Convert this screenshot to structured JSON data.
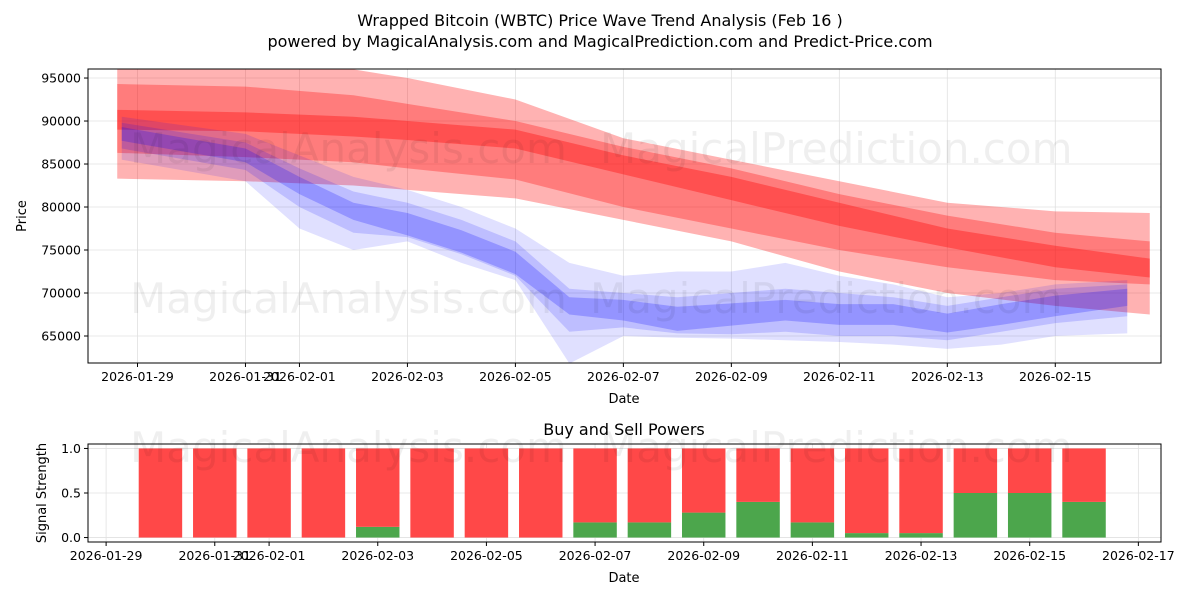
{
  "chart_data": [
    {
      "type": "area",
      "title": "Wrapped Bitcoin (WBTC) Price Wave Trend Analysis (Feb 16 )",
      "subtitle": "powered by MagicalAnalysis.com and MagicalPrediction.com and Predict-Price.com",
      "xlabel": "Date",
      "ylabel": "Price",
      "xlim": [
        "2026-01-28T02:00",
        "2026-02-16T23:00"
      ],
      "ylim": [
        61860,
        96050
      ],
      "grid": true,
      "x_ticks": [
        "2026-01-29",
        "2026-01-31",
        "2026-02-01",
        "2026-02-03",
        "2026-02-05",
        "2026-02-07",
        "2026-02-09",
        "2026-02-11",
        "2026-02-13",
        "2026-02-15"
      ],
      "y_ticks": [
        65000,
        70000,
        75000,
        80000,
        85000,
        90000,
        95000
      ],
      "watermarks": [
        "MagicalAnalysis.com",
        "MagicalPrediction.com"
      ],
      "series": [
        {
          "name": "red-outer-band",
          "color": "#ff0000",
          "opacity": 0.3,
          "x": [
            "2026-01-28T15:00",
            "2026-01-31",
            "2026-02-02",
            "2026-02-03",
            "2026-02-05",
            "2026-02-07",
            "2026-02-09",
            "2026-02-11",
            "2026-02-13",
            "2026-02-15",
            "2026-02-16T18:00"
          ],
          "upper": [
            97000,
            96500,
            96000,
            95000,
            92500,
            88000,
            85500,
            83000,
            80500,
            79500,
            79300
          ],
          "lower": [
            83300,
            83000,
            82500,
            82000,
            81000,
            78500,
            76000,
            72500,
            70000,
            68500,
            67500
          ]
        },
        {
          "name": "red-mid-band",
          "color": "#ff0000",
          "opacity": 0.3,
          "x": [
            "2026-01-28T15:00",
            "2026-01-31",
            "2026-02-02",
            "2026-02-03",
            "2026-02-05",
            "2026-02-07",
            "2026-02-09",
            "2026-02-11",
            "2026-02-13",
            "2026-02-15",
            "2026-02-16T18:00"
          ],
          "upper": [
            94300,
            94000,
            93000,
            92000,
            90000,
            87000,
            84500,
            81500,
            79000,
            77000,
            76000
          ],
          "lower": [
            86300,
            85800,
            85200,
            84500,
            83200,
            80000,
            77500,
            75000,
            73000,
            71500,
            71000
          ]
        },
        {
          "name": "red-core-band",
          "color": "#ff0000",
          "opacity": 0.35,
          "x": [
            "2026-01-28T15:00",
            "2026-01-31",
            "2026-02-02",
            "2026-02-03",
            "2026-02-05",
            "2026-02-07",
            "2026-02-09",
            "2026-02-11",
            "2026-02-13",
            "2026-02-15",
            "2026-02-16T18:00"
          ],
          "upper": [
            91300,
            91000,
            90500,
            90000,
            89000,
            86000,
            83500,
            80500,
            77500,
            75500,
            74000
          ],
          "lower": [
            89000,
            88800,
            88200,
            87800,
            86800,
            83800,
            80800,
            77800,
            75300,
            73000,
            71800
          ]
        },
        {
          "name": "blue-outer-band",
          "color": "#0000ff",
          "opacity": 0.12,
          "x": [
            "2026-01-28T17:00",
            "2026-01-31",
            "2026-02-01",
            "2026-02-02",
            "2026-02-03",
            "2026-02-04",
            "2026-02-05",
            "2026-02-06",
            "2026-02-07",
            "2026-02-08",
            "2026-02-09",
            "2026-02-10",
            "2026-02-11",
            "2026-02-12",
            "2026-02-13",
            "2026-02-14",
            "2026-02-15",
            "2026-02-16T08:00"
          ],
          "upper": [
            90500,
            88500,
            86000,
            83500,
            82000,
            80000,
            77500,
            73500,
            72000,
            72500,
            72500,
            73500,
            72000,
            71000,
            69500,
            70000,
            71000,
            71500
          ],
          "lower": [
            85500,
            83000,
            77500,
            75000,
            76000,
            73500,
            71500,
            61800,
            65000,
            64800,
            64700,
            64500,
            64300,
            64000,
            63500,
            64000,
            65000,
            65300
          ]
        },
        {
          "name": "blue-mid-band",
          "color": "#0000ff",
          "opacity": 0.15,
          "x": [
            "2026-01-28T17:00",
            "2026-01-31",
            "2026-02-01",
            "2026-02-02",
            "2026-02-03",
            "2026-02-04",
            "2026-02-05",
            "2026-02-06",
            "2026-02-07",
            "2026-02-08",
            "2026-02-09",
            "2026-02-10",
            "2026-02-11",
            "2026-02-12",
            "2026-02-13",
            "2026-02-14",
            "2026-02-15",
            "2026-02-16T08:00"
          ],
          "upper": [
            89800,
            87500,
            84500,
            81800,
            80500,
            78500,
            76000,
            70500,
            70000,
            69500,
            70000,
            70500,
            70000,
            69500,
            68500,
            69500,
            70500,
            71000
          ],
          "lower": [
            86800,
            84300,
            80000,
            77000,
            76500,
            74500,
            72000,
            65500,
            66000,
            65300,
            65200,
            65500,
            65000,
            65000,
            64500,
            65500,
            66500,
            67300
          ]
        },
        {
          "name": "blue-inner-band",
          "color": "#0000ff",
          "opacity": 0.22,
          "x": [
            "2026-01-28T17:00",
            "2026-01-31",
            "2026-02-01",
            "2026-02-02",
            "2026-02-03",
            "2026-02-04",
            "2026-02-05",
            "2026-02-06",
            "2026-02-07",
            "2026-02-08",
            "2026-02-09",
            "2026-02-10",
            "2026-02-11",
            "2026-02-12",
            "2026-02-13",
            "2026-02-14",
            "2026-02-15",
            "2026-02-16T08:00"
          ],
          "upper": [
            89300,
            86800,
            83500,
            80500,
            79300,
            77300,
            74800,
            69500,
            69200,
            68400,
            68800,
            69200,
            68700,
            68700,
            67600,
            68700,
            69700,
            70500
          ],
          "lower": [
            87700,
            85200,
            81500,
            78500,
            76700,
            74700,
            72200,
            67500,
            66800,
            65600,
            66200,
            66800,
            66300,
            66300,
            65400,
            66300,
            67300,
            68500
          ]
        }
      ]
    },
    {
      "type": "bar",
      "title": "Buy and Sell Powers",
      "xlabel": "Date",
      "ylabel": "Signal Strength",
      "xlim": [
        "2026-01-28T16:00",
        "2026-02-17T10:00"
      ],
      "ylim": [
        -0.05,
        1.05
      ],
      "grid": true,
      "x_ticks": [
        "2026-01-29",
        "2026-01-31",
        "2026-02-01",
        "2026-02-03",
        "2026-02-05",
        "2026-02-07",
        "2026-02-09",
        "2026-02-11",
        "2026-02-13",
        "2026-02-15",
        "2026-02-17"
      ],
      "y_ticks": [
        "0.0",
        "0.5",
        "1.0"
      ],
      "watermarks": [
        "MagicalAnalysis.com",
        "MagicalPrediction.com"
      ],
      "categories": [
        "2026-01-30",
        "2026-01-31",
        "2026-02-01",
        "2026-02-02",
        "2026-02-03",
        "2026-02-04",
        "2026-02-05",
        "2026-02-06",
        "2026-02-07",
        "2026-02-08",
        "2026-02-09",
        "2026-02-10",
        "2026-02-11",
        "2026-02-12",
        "2026-02-13",
        "2026-02-14",
        "2026-02-15",
        "2026-02-16"
      ],
      "series": [
        {
          "name": "Buy",
          "color": "#4ca64c",
          "values": [
            0,
            0,
            0,
            0,
            0.12,
            0,
            0,
            0,
            0.17,
            0.17,
            0.28,
            0.4,
            0.17,
            0.05,
            0.05,
            0.5,
            0.5,
            0.4
          ]
        },
        {
          "name": "Sell",
          "color": "#ff4848",
          "values": [
            1,
            1,
            1,
            1,
            0.88,
            1,
            1,
            1,
            0.83,
            0.83,
            0.72,
            0.6,
            0.83,
            0.95,
            0.95,
            0.5,
            0.5,
            0.6
          ]
        }
      ]
    }
  ]
}
